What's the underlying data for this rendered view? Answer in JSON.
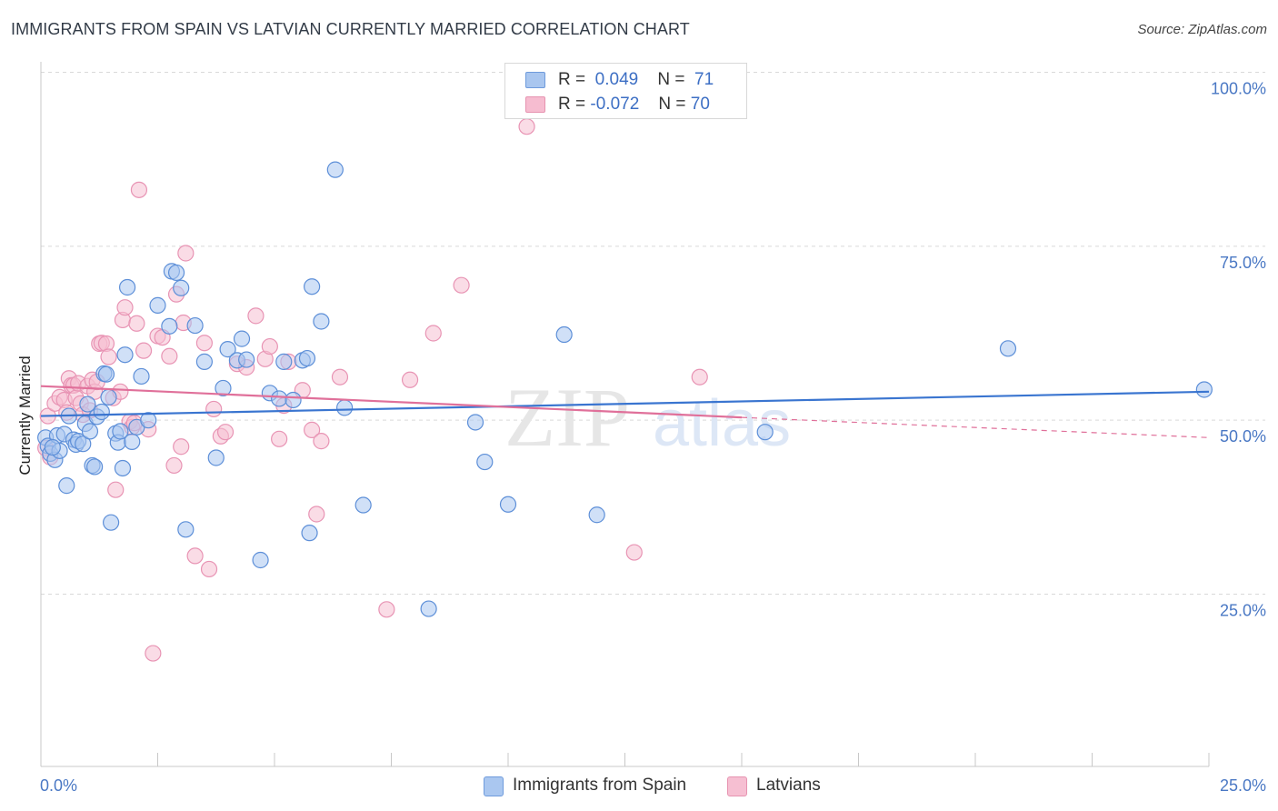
{
  "title": "IMMIGRANTS FROM SPAIN VS LATVIAN CURRENTLY MARRIED CORRELATION CHART",
  "source": "Source: ZipAtlas.com",
  "watermark": {
    "zip": "ZIP",
    "atlas": "atlas"
  },
  "legend": {
    "r_label": "R =",
    "n_label": "N =",
    "rows": [
      {
        "r": "0.049",
        "n": "71",
        "color": "#a9c6ef",
        "border": "#6f9bdc"
      },
      {
        "r": "-0.072",
        "n": "70",
        "color": "#f6bcd0",
        "border": "#e693b0"
      }
    ]
  },
  "colors": {
    "blue_fill": "#aac7f0",
    "blue_stroke": "#5d8fd8",
    "blue_line": "#3a75d0",
    "pink_fill": "#f6bfd2",
    "pink_stroke": "#e894b4",
    "pink_line": "#e0709a",
    "grid": "#d9d9d9",
    "tick_text": "#4a78c4"
  },
  "chart_data": {
    "type": "scatter",
    "title": "IMMIGRANTS FROM SPAIN VS LATVIAN CURRENTLY MARRIED CORRELATION CHART",
    "xlabel": "",
    "ylabel": "Currently Married",
    "xlim": [
      0,
      25
    ],
    "ylim": [
      0,
      102
    ],
    "x_tick_labels": [
      "0.0%",
      "25.0%"
    ],
    "y_ticks": [
      25,
      50,
      75,
      100
    ],
    "y_tick_labels": [
      "25.0%",
      "50.0%",
      "75.0%",
      "100.0%"
    ],
    "grid": true,
    "legend_position": "top-center",
    "series": [
      {
        "name": "Immigrants from Spain",
        "r": 0.049,
        "n": 71,
        "trend": {
          "x": [
            0,
            25
          ],
          "y": [
            50.6,
            54.1
          ]
        },
        "points": [
          [
            0.1,
            47.5
          ],
          [
            0.15,
            46.3
          ],
          [
            0.2,
            45.2
          ],
          [
            0.3,
            44.3
          ],
          [
            0.35,
            47.8
          ],
          [
            0.4,
            45.6
          ],
          [
            0.5,
            48.0
          ],
          [
            0.55,
            40.6
          ],
          [
            0.6,
            50.6
          ],
          [
            0.7,
            47.2
          ],
          [
            0.75,
            46.5
          ],
          [
            0.8,
            47.0
          ],
          [
            0.9,
            46.6
          ],
          [
            0.95,
            49.5
          ],
          [
            1.0,
            52.3
          ],
          [
            1.05,
            48.4
          ],
          [
            1.1,
            43.5
          ],
          [
            1.15,
            43.3
          ],
          [
            1.2,
            50.5
          ],
          [
            1.3,
            51.2
          ],
          [
            1.35,
            56.7
          ],
          [
            1.4,
            56.6
          ],
          [
            1.45,
            53.3
          ],
          [
            1.5,
            35.3
          ],
          [
            1.6,
            48.1
          ],
          [
            1.65,
            46.8
          ],
          [
            1.7,
            48.4
          ],
          [
            1.75,
            43.1
          ],
          [
            1.8,
            59.4
          ],
          [
            1.85,
            69.1
          ],
          [
            1.95,
            46.9
          ],
          [
            2.05,
            49.0
          ],
          [
            2.15,
            56.3
          ],
          [
            2.3,
            50.0
          ],
          [
            2.5,
            66.5
          ],
          [
            2.75,
            63.5
          ],
          [
            2.8,
            71.4
          ],
          [
            2.9,
            71.2
          ],
          [
            3.0,
            69.0
          ],
          [
            3.1,
            34.3
          ],
          [
            3.3,
            63.6
          ],
          [
            3.5,
            58.4
          ],
          [
            3.75,
            44.6
          ],
          [
            3.9,
            54.6
          ],
          [
            4.0,
            60.2
          ],
          [
            4.2,
            58.6
          ],
          [
            4.3,
            61.7
          ],
          [
            4.4,
            58.7
          ],
          [
            4.7,
            29.9
          ],
          [
            4.9,
            53.9
          ],
          [
            5.1,
            53.1
          ],
          [
            5.2,
            58.4
          ],
          [
            5.4,
            52.9
          ],
          [
            5.6,
            58.6
          ],
          [
            5.7,
            58.9
          ],
          [
            5.75,
            33.8
          ],
          [
            5.8,
            69.2
          ],
          [
            6.0,
            64.2
          ],
          [
            6.3,
            86.0
          ],
          [
            6.5,
            51.8
          ],
          [
            6.9,
            37.8
          ],
          [
            8.3,
            22.9
          ],
          [
            9.3,
            49.7
          ],
          [
            9.5,
            44.0
          ],
          [
            10.0,
            37.9
          ],
          [
            11.2,
            62.3
          ],
          [
            11.9,
            36.4
          ],
          [
            15.5,
            48.3
          ],
          [
            20.7,
            60.3
          ],
          [
            24.9,
            54.4
          ],
          [
            0.25,
            46.1
          ]
        ]
      },
      {
        "name": "Latvians",
        "r": -0.072,
        "n": 70,
        "trend": {
          "x": [
            0,
            15
          ],
          "y": [
            54.9,
            50.4
          ]
        },
        "trend_dashed": {
          "x": [
            15,
            25
          ],
          "y": [
            50.4,
            47.5
          ]
        },
        "points": [
          [
            0.1,
            46.0
          ],
          [
            0.15,
            50.6
          ],
          [
            0.2,
            44.7
          ],
          [
            0.3,
            52.4
          ],
          [
            0.4,
            53.3
          ],
          [
            0.5,
            52.9
          ],
          [
            0.55,
            51.1
          ],
          [
            0.6,
            56.0
          ],
          [
            0.65,
            55.0
          ],
          [
            0.7,
            55.0
          ],
          [
            0.75,
            53.2
          ],
          [
            0.8,
            55.3
          ],
          [
            0.85,
            52.4
          ],
          [
            0.9,
            50.8
          ],
          [
            1.0,
            54.9
          ],
          [
            1.05,
            51.4
          ],
          [
            1.1,
            55.8
          ],
          [
            1.15,
            54.1
          ],
          [
            1.2,
            55.5
          ],
          [
            1.25,
            61.0
          ],
          [
            1.3,
            61.1
          ],
          [
            1.4,
            61.0
          ],
          [
            1.45,
            59.1
          ],
          [
            1.55,
            53.2
          ],
          [
            1.6,
            40.0
          ],
          [
            1.7,
            54.1
          ],
          [
            1.75,
            64.4
          ],
          [
            1.8,
            66.2
          ],
          [
            1.9,
            49.8
          ],
          [
            1.95,
            49.0
          ],
          [
            2.0,
            49.6
          ],
          [
            2.05,
            63.9
          ],
          [
            2.1,
            83.1
          ],
          [
            2.2,
            60.0
          ],
          [
            2.3,
            48.7
          ],
          [
            2.4,
            16.5
          ],
          [
            2.5,
            62.1
          ],
          [
            2.6,
            61.9
          ],
          [
            2.75,
            59.2
          ],
          [
            2.85,
            43.5
          ],
          [
            2.9,
            68.1
          ],
          [
            3.0,
            46.2
          ],
          [
            3.05,
            64.0
          ],
          [
            3.1,
            74.0
          ],
          [
            3.3,
            30.5
          ],
          [
            3.5,
            61.1
          ],
          [
            3.6,
            28.6
          ],
          [
            3.7,
            51.6
          ],
          [
            3.85,
            47.7
          ],
          [
            3.95,
            48.3
          ],
          [
            4.2,
            58.1
          ],
          [
            4.4,
            57.6
          ],
          [
            4.6,
            65.0
          ],
          [
            4.8,
            58.8
          ],
          [
            4.9,
            60.6
          ],
          [
            5.1,
            47.3
          ],
          [
            5.2,
            52.1
          ],
          [
            5.3,
            58.4
          ],
          [
            5.6,
            54.3
          ],
          [
            5.8,
            48.6
          ],
          [
            5.9,
            36.5
          ],
          [
            6.0,
            47.0
          ],
          [
            6.4,
            56.2
          ],
          [
            7.4,
            22.8
          ],
          [
            7.9,
            55.8
          ],
          [
            8.4,
            62.5
          ],
          [
            9.0,
            69.4
          ],
          [
            10.4,
            92.2
          ],
          [
            12.7,
            31.0
          ],
          [
            14.1,
            56.2
          ]
        ]
      }
    ]
  },
  "bottom_legend": [
    {
      "label": "Immigrants from Spain",
      "color": "#aac7f0",
      "border": "#6f9bdc"
    },
    {
      "label": "Latvians",
      "color": "#f6bfd2",
      "border": "#e693b0"
    }
  ]
}
